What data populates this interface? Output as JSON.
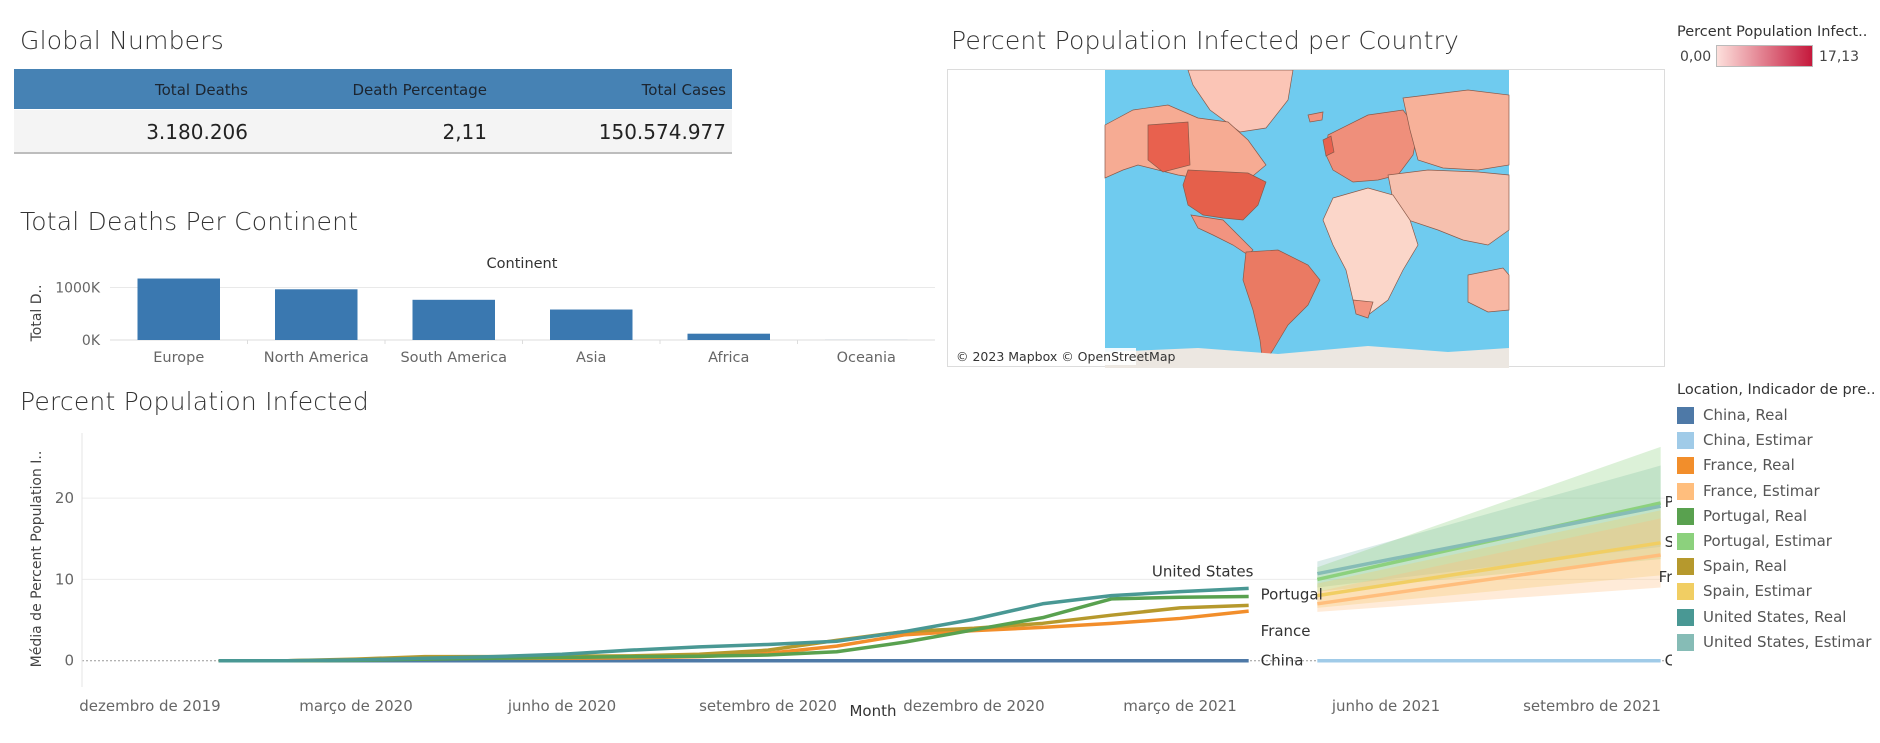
{
  "global_numbers": {
    "title": "Global Numbers",
    "headers": [
      "Total Deaths",
      "Death Percentage",
      "Total Cases"
    ],
    "values": [
      "3.180.206",
      "2,11",
      "150.574.977"
    ]
  },
  "map": {
    "title": "Percent Population Infected per Country",
    "attribution": "© 2023 Mapbox © OpenStreetMap",
    "ocean_color": "#6fcbef",
    "land_color": "#f8a88a",
    "legend": {
      "title": "Percent Population Infect..",
      "min": "0,00",
      "max": "17,13",
      "color_low": "#fde0dc",
      "color_high": "#c5183c"
    }
  },
  "chart_data": [
    {
      "type": "bar",
      "title": "Total Deaths Per Continent",
      "header": "Continent",
      "ylabel": "Total D..",
      "ytick_labels": [
        "1000K",
        "0K"
      ],
      "yticks": [
        1000000,
        0
      ],
      "ylim": [
        0,
        1180000
      ],
      "categories": [
        "Europe",
        "North America",
        "South America",
        "Asia",
        "Africa",
        "Oceania"
      ],
      "values": [
        1170000,
        965000,
        765000,
        580000,
        120000,
        1000
      ],
      "color": "#3a78b0",
      "grid": true
    },
    {
      "type": "line",
      "title": "Percent Population Infected",
      "xlabel": "Month",
      "ylabel": "Média de Percent Population I..",
      "yticks": [
        0,
        10,
        20
      ],
      "ylim": [
        -2,
        28
      ],
      "xticks": [
        "dezembro de 2019",
        "março de 2020",
        "junho de 2020",
        "setembro de 2020",
        "dezembro de 2020",
        "março de 2021",
        "junho de 2021",
        "setembro de 2021"
      ],
      "x_real": [
        "2020-01",
        "2020-02",
        "2020-03",
        "2020-04",
        "2020-05",
        "2020-06",
        "2020-07",
        "2020-08",
        "2020-09",
        "2020-10",
        "2020-11",
        "2020-12",
        "2021-01",
        "2021-02",
        "2021-03",
        "2021-04"
      ],
      "x_forecast": [
        "2021-05",
        "2021-10"
      ],
      "legend_title": "Location, Indicador de pre..",
      "legend": [
        {
          "name": "China, Real",
          "color": "#4e79a7"
        },
        {
          "name": "China, Estimar",
          "color": "#a0cbe8"
        },
        {
          "name": "France, Real",
          "color": "#f28e2b"
        },
        {
          "name": "France, Estimar",
          "color": "#ffbe7d"
        },
        {
          "name": "Portugal, Real",
          "color": "#59a14f"
        },
        {
          "name": "Portugal, Estimar",
          "color": "#8cd17d"
        },
        {
          "name": "Spain, Real",
          "color": "#b6992d"
        },
        {
          "name": "Spain, Estimar",
          "color": "#f1ce63"
        },
        {
          "name": "United States, Real",
          "color": "#499894"
        },
        {
          "name": "United States, Estimar",
          "color": "#86bcb6"
        }
      ],
      "series": [
        {
          "name": "United States",
          "label": "United States",
          "color": "#499894",
          "forecast_color": "#86bcb6",
          "real": [
            0.0,
            0.0,
            0.1,
            0.3,
            0.5,
            0.8,
            1.3,
            1.7,
            2.0,
            2.4,
            3.6,
            5.1,
            7.0,
            8.0,
            8.5,
            8.9
          ],
          "forecast": [
            10.7,
            19.0
          ],
          "band": [
            [
              9.0,
              12.2
            ],
            [
              14.0,
              24.0
            ]
          ]
        },
        {
          "name": "Portugal",
          "label": "Portugal",
          "color": "#59a14f",
          "forecast_color": "#8cd17d",
          "real": [
            0.0,
            0.0,
            0.05,
            0.2,
            0.3,
            0.4,
            0.5,
            0.55,
            0.7,
            1.1,
            2.3,
            3.8,
            5.3,
            7.6,
            7.8,
            7.9
          ],
          "forecast": [
            10.0,
            19.4
          ],
          "band": [
            [
              8.5,
              11.5
            ],
            [
              12.5,
              26.3
            ]
          ]
        },
        {
          "name": "Spain",
          "label": "Spain",
          "color": "#b6992d",
          "forecast_color": "#f1ce63",
          "real": [
            0.0,
            0.0,
            0.2,
            0.5,
            0.5,
            0.55,
            0.6,
            0.8,
            1.3,
            2.5,
            3.6,
            4.0,
            4.6,
            5.6,
            6.5,
            6.8
          ],
          "forecast": [
            8.0,
            14.5
          ],
          "band": [
            [
              6.5,
              9.5
            ],
            [
              10.5,
              18.5
            ]
          ]
        },
        {
          "name": "France",
          "label": "France",
          "color": "#f28e2b",
          "forecast_color": "#ffbe7d",
          "real": [
            0.0,
            0.0,
            0.1,
            0.3,
            0.3,
            0.3,
            0.35,
            0.5,
            0.9,
            1.8,
            3.2,
            3.7,
            4.1,
            4.6,
            5.2,
            6.1
          ],
          "forecast": [
            7.0,
            13.0
          ],
          "band": [
            [
              6.0,
              8.5
            ],
            [
              9.0,
              17.5
            ]
          ]
        },
        {
          "name": "China",
          "label": "China",
          "color": "#4e79a7",
          "forecast_color": "#a0cbe8",
          "real": [
            0.0,
            0.0,
            0.0,
            0.0,
            0.0,
            0.0,
            0.0,
            0.0,
            0.0,
            0.0,
            0.0,
            0.0,
            0.0,
            0.0,
            0.0,
            0.0
          ],
          "forecast": [
            0.0,
            0.0
          ],
          "band": null
        }
      ],
      "grid": true
    }
  ]
}
